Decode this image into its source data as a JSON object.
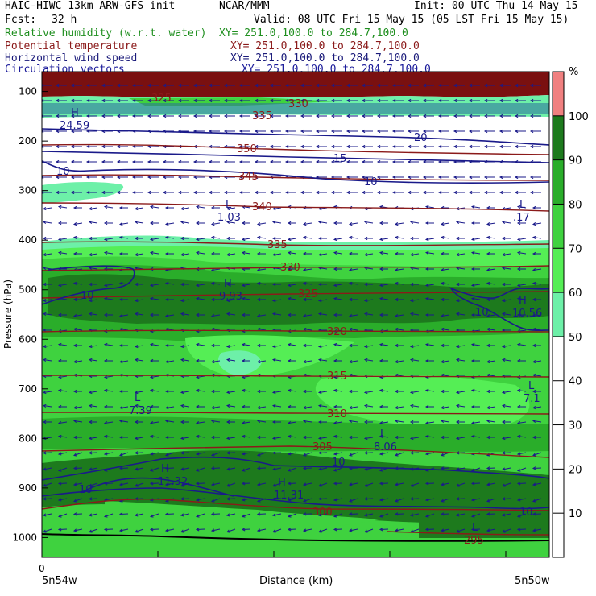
{
  "header": {
    "model": "HAIC-HIWC 13km ARW-GFS init",
    "org": "NCAR/MMM",
    "init": "Init: 00 UTC Thu 14 May 15",
    "fcst_label": "Fcst:",
    "fcst_value": "32 h",
    "valid": "Valid: 08 UTC Fri 15 May 15 (05 LST Fri 15 May 15)"
  },
  "fields": [
    {
      "name": "Relative humidity (w.r.t. water)",
      "xy": "XY= 251.0,100.0 to 284.7,100.0",
      "color": "#1f8f1f"
    },
    {
      "name": "Potential temperature",
      "xy": "XY= 251.0,100.0 to 284.7,100.0",
      "color": "#8b1a1a"
    },
    {
      "name": "Horizontal wind speed",
      "xy": "XY= 251.0,100.0 to 284.7,100.0",
      "color": "#1a1a7a"
    },
    {
      "name": "Circulation vectors",
      "xy": "XY= 251.0,100.0 to 284.7,100.0",
      "color": "#1a1a9a"
    }
  ],
  "chart_data": {
    "type": "heatmap",
    "ylabel": "Pressure (hPa)",
    "xlabel": "Distance (km)",
    "x_start_tick": "0",
    "x_left_label": "5n54w",
    "x_right_label": "5n50w",
    "y_ticks": [
      100,
      200,
      300,
      400,
      500,
      600,
      700,
      800,
      900,
      1000
    ],
    "ylim": [
      60,
      1040
    ],
    "colorbar": {
      "unit": "%",
      "ticks": [
        10,
        20,
        30,
        40,
        50,
        60,
        70,
        80,
        90,
        100
      ],
      "bands": [
        {
          "from": 0,
          "to": 50,
          "color": "#ffffff"
        },
        {
          "from": 50,
          "to": 60,
          "color": "#6df0a8"
        },
        {
          "from": 60,
          "to": 70,
          "color": "#55ee55"
        },
        {
          "from": 70,
          "to": 80,
          "color": "#3fd23f"
        },
        {
          "from": 80,
          "to": 90,
          "color": "#2aad2a"
        },
        {
          "from": 90,
          "to": 100,
          "color": "#1d7a1d"
        },
        {
          "from": 100,
          "to": 110,
          "color": "#f08080"
        }
      ]
    },
    "theta_contours": [
      {
        "label": "325",
        "p": 120
      },
      {
        "label": "330",
        "p": 125
      },
      {
        "label": "335",
        "p": 145
      },
      {
        "label": "350",
        "p": 185
      },
      {
        "label": "345",
        "p": 240
      },
      {
        "label": "340",
        "p": 328
      },
      {
        "label": "335",
        "p": 403
      },
      {
        "label": "330",
        "p": 452
      },
      {
        "label": "325",
        "p": 505
      },
      {
        "label": "320",
        "p": 575
      },
      {
        "label": "315",
        "p": 662
      },
      {
        "label": "310",
        "p": 743
      },
      {
        "label": "305",
        "p": 828
      },
      {
        "label": "300",
        "p": 955
      },
      {
        "label": "295",
        "p": 1010
      }
    ],
    "wind_contours": [
      {
        "label": "20"
      },
      {
        "label": "15"
      },
      {
        "label": "10"
      },
      {
        "label": "10"
      },
      {
        "label": "10"
      },
      {
        "label": "10"
      },
      {
        "label": "10"
      },
      {
        "label": "10"
      },
      {
        "label": "10"
      }
    ],
    "extrema": [
      {
        "type": "H",
        "value": "24.59"
      },
      {
        "type": "L",
        "value": "1.03"
      },
      {
        "type": "L",
        "value": ".17"
      },
      {
        "type": "H",
        "value": "9.93"
      },
      {
        "type": "H",
        "value": "10.56"
      },
      {
        "type": "L",
        "value": "7.39"
      },
      {
        "type": "L",
        "value": "7.1"
      },
      {
        "type": "L",
        "value": "8.06"
      },
      {
        "type": "H",
        "value": "11.32"
      },
      {
        "type": "H",
        "value": "11.31"
      },
      {
        "type": "L",
        "value": ""
      }
    ]
  }
}
